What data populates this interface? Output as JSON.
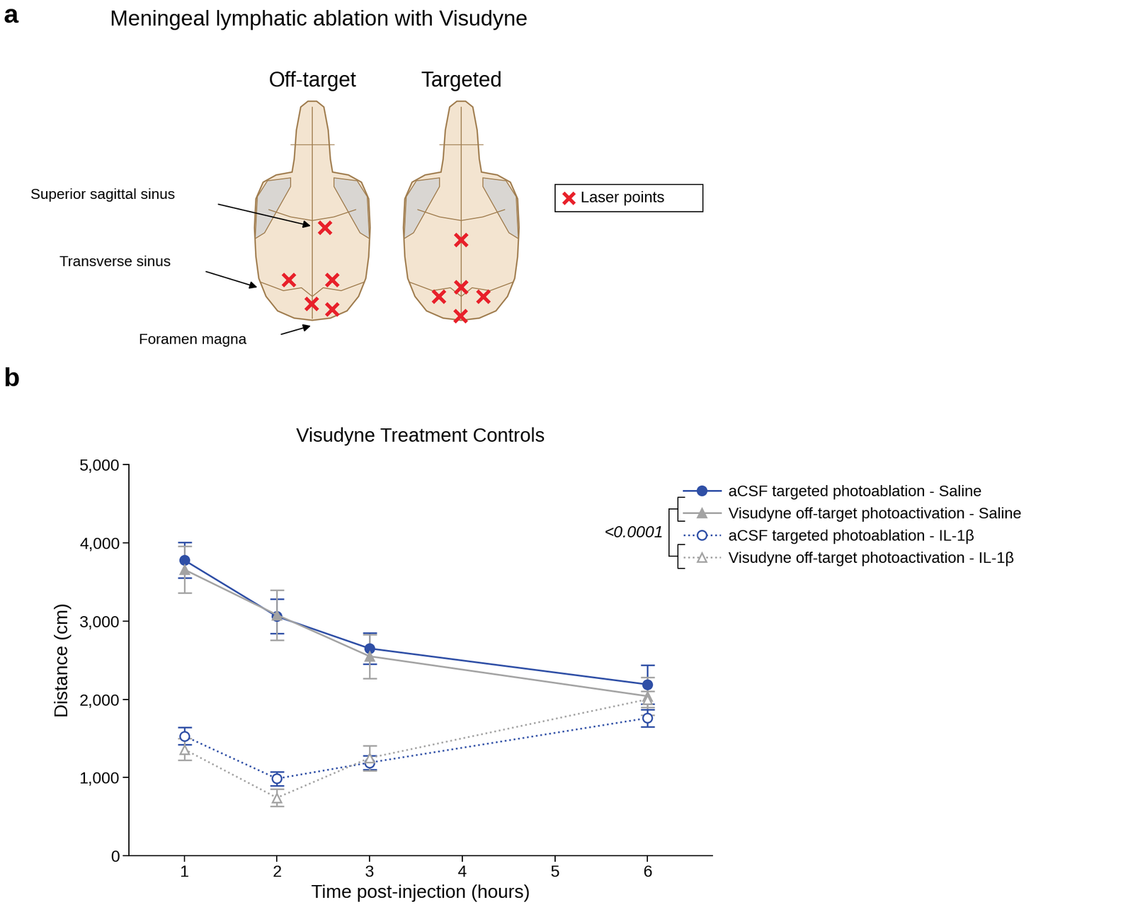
{
  "diagram": {
    "panel": "a",
    "title": "Meningeal lymphatic ablation with Visudyne",
    "skull_labels": [
      "Off-target",
      "Targeted"
    ],
    "structures": [
      "Superior sagittal sinus",
      "Transverse sinus",
      "Foramen magna"
    ],
    "key": "Laser points",
    "mark_color": "#e8202a"
  },
  "chart_data": {
    "panel": "b",
    "type": "line",
    "title": "Visudyne Treatment Controls",
    "x_label": "Time post-injection (hours)",
    "y_label": "Distance (cm)",
    "x": [
      1,
      2,
      3,
      6
    ],
    "xlim": [
      0.4,
      6.7
    ],
    "xticks": [
      1,
      2,
      3,
      4,
      5,
      6
    ],
    "ylim": [
      0,
      5000
    ],
    "yticks": [
      0,
      {
        "value": 1000,
        "label": "1,000"
      },
      {
        "value": 2000,
        "label": "2,000"
      },
      {
        "value": 3000,
        "label": "3,000"
      },
      {
        "value": 4000,
        "label": "4,000"
      },
      {
        "value": 5000,
        "label": "5,000"
      }
    ],
    "legend": "right",
    "annotation": "<0.0001",
    "series": [
      {
        "name": "aCSF targeted photoablation - Saline",
        "color": "#2f4fa6",
        "marker": "circle",
        "line_style": "solid",
        "values": [
          3780,
          3060,
          2650,
          2190
        ],
        "errors": [
          230,
          220,
          200,
          250
        ]
      },
      {
        "name": "Visudyne off-target photoactivation - Saline",
        "color": "#a3a3a3",
        "marker": "triangle",
        "line_style": "solid",
        "values": [
          3660,
          3080,
          2550,
          2040
        ],
        "errors": [
          300,
          320,
          280,
          240
        ]
      },
      {
        "name": "aCSF targeted photoablation - IL-1β",
        "color": "#2f4fa6",
        "marker": "open_circle",
        "line_style": "dotted",
        "values": [
          1530,
          985,
          1190,
          1760
        ],
        "errors": [
          110,
          90,
          90,
          110
        ]
      },
      {
        "name": "Visudyne off-target photoactivation - IL-1β",
        "color": "#a3a3a3",
        "marker": "open_triangle",
        "line_style": "dotted",
        "values": [
          1360,
          740,
          1250,
          2000
        ],
        "errors": [
          140,
          110,
          160,
          100
        ]
      }
    ]
  }
}
